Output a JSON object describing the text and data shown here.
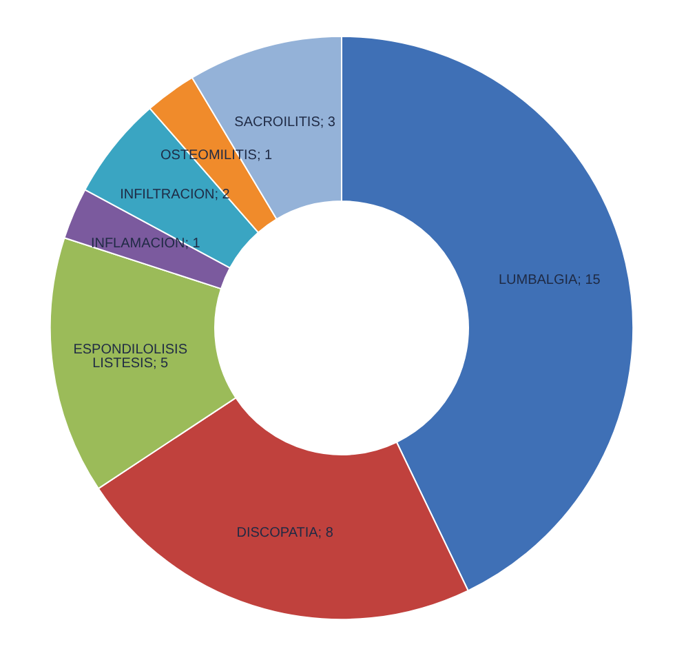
{
  "chart_data": {
    "type": "donut",
    "categories": [
      "LUMBALGIA",
      "DISCOPATIA",
      "ESPONDILOLISIS LISTESIS",
      "INFLAMACION",
      "INFILTRACION",
      "OSTEOMILITIS",
      "SACROILITIS"
    ],
    "values": [
      15,
      8,
      5,
      1,
      2,
      1,
      3
    ],
    "colors": [
      "#3f70b6",
      "#c0413d",
      "#9bbb59",
      "#7b5a9e",
      "#3aa5c2",
      "#f08b2b",
      "#94b2d8"
    ],
    "value_labels": [
      "; 15",
      "; 8",
      "; 5",
      "; 1",
      "; 2",
      "; 1",
      "; 3"
    ],
    "legend": false
  }
}
